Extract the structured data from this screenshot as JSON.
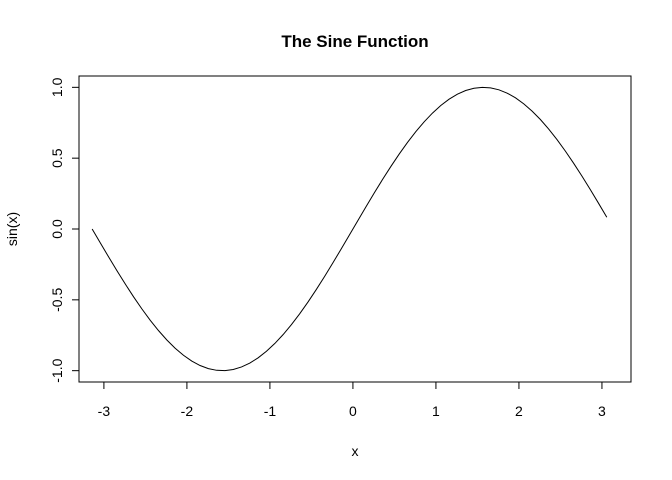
{
  "chart_data": {
    "type": "line",
    "title": "The Sine Function",
    "xlabel": "x",
    "ylabel": "sin(x)",
    "xlim": [
      -3.3,
      3.35
    ],
    "ylim": [
      -1.08,
      1.08
    ],
    "x_ticks": [
      -3,
      -2,
      -1,
      0,
      1,
      2,
      3
    ],
    "x_tick_labels": [
      "-3",
      "-2",
      "-1",
      "0",
      "1",
      "2",
      "3"
    ],
    "y_ticks": [
      -1.0,
      -0.5,
      0.0,
      0.5,
      1.0
    ],
    "y_tick_labels": [
      "-1.0",
      "-0.5",
      "0.0",
      "0.5",
      "1.0"
    ],
    "grid": false,
    "legend": "none",
    "series": [
      {
        "name": "sin(x)",
        "color": "#000000",
        "x_start": -3.1416,
        "x_end": 3.0584,
        "step": 0.1,
        "x": [
          -3.1416,
          -3.0416,
          -2.9416,
          -2.8416,
          -2.7416,
          -2.6416,
          -2.5416,
          -2.4416,
          -2.3416,
          -2.2416,
          -2.1416,
          -2.0416,
          -1.9416,
          -1.8416,
          -1.7416,
          -1.6416,
          -1.5416,
          -1.4416,
          -1.3416,
          -1.2416,
          -1.1416,
          -1.0416,
          -0.9416,
          -0.8416,
          -0.7416,
          -0.6416,
          -0.5416,
          -0.4416,
          -0.3416,
          -0.2416,
          -0.1416,
          -0.0416,
          0.0584,
          0.1584,
          0.2584,
          0.3584,
          0.4584,
          0.5584,
          0.6584,
          0.7584,
          0.8584,
          0.9584,
          1.0584,
          1.1584,
          1.2584,
          1.3584,
          1.4584,
          1.5584,
          1.6584,
          1.7584,
          1.8584,
          1.9584,
          2.0584,
          2.1584,
          2.2584,
          2.3584,
          2.4584,
          2.5584,
          2.6584,
          2.7584,
          2.8584,
          2.9584,
          3.0584
        ],
        "y": [
          0.0,
          -0.0998,
          -0.1987,
          -0.2955,
          -0.3894,
          -0.4794,
          -0.5646,
          -0.6442,
          -0.7174,
          -0.7833,
          -0.8415,
          -0.8912,
          -0.932,
          -0.9636,
          -0.9854,
          -0.9975,
          -0.9996,
          -0.9917,
          -0.9738,
          -0.9463,
          -0.9093,
          -0.8632,
          -0.8085,
          -0.7457,
          -0.6755,
          -0.5985,
          -0.5155,
          -0.4274,
          -0.335,
          -0.2392,
          -0.1411,
          -0.0416,
          0.0584,
          0.1577,
          0.2555,
          0.3508,
          0.4425,
          0.5298,
          0.6118,
          0.6878,
          0.7568,
          0.8183,
          0.8716,
          0.9162,
          0.9516,
          0.9776,
          0.9937,
          0.9999,
          0.9962,
          0.9825,
          0.959,
          0.9258,
          0.8835,
          0.8323,
          0.7728,
          0.7055,
          0.6313,
          0.5507,
          0.4646,
          0.3739,
          0.2794,
          0.1822,
          0.0831
        ]
      }
    ]
  }
}
